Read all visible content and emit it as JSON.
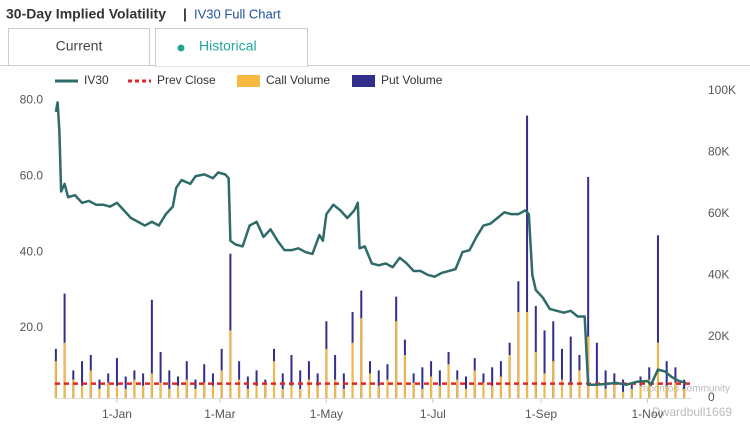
{
  "header": {
    "title": "30-Day Implied Volatility",
    "separator": "|",
    "link": "IV30 Full Chart"
  },
  "tabs": [
    "Current",
    "Historical"
  ],
  "watermark": [
    "moomoo community",
    "Dwardbull1669"
  ],
  "chart_data": {
    "type": "line",
    "xlim": [
      -35.5,
      329.5
    ],
    "xticks": [
      {
        "value": 0,
        "label": "1-Jan"
      },
      {
        "value": 59,
        "label": "1-Mar"
      },
      {
        "value": 120,
        "label": "1-May"
      },
      {
        "value": 181,
        "label": "1-Jul"
      },
      {
        "value": 243,
        "label": "1-Sep"
      },
      {
        "value": 304,
        "label": "1-Nov"
      }
    ],
    "ylim": [
      1.5,
      82.5
    ],
    "yticks": [
      {
        "value": 20,
        "label": "20.0"
      },
      {
        "value": 40,
        "label": "40.0"
      },
      {
        "value": 60,
        "label": "60.0"
      },
      {
        "value": 80,
        "label": "80.0"
      }
    ],
    "y2lim": [
      0,
      100000
    ],
    "y2ticks": [
      0,
      {
        "value": 20000,
        "label": "20K"
      },
      {
        "value": 40000,
        "label": "40K"
      },
      {
        "value": 60000,
        "label": "60K"
      },
      {
        "value": 80000,
        "label": "80K"
      },
      {
        "value": 100000,
        "label": "100K"
      }
    ],
    "series": [
      {
        "name": "IV30",
        "color": "#2f6b68",
        "x": [
          -35,
          -34,
          -33,
          -32,
          -30,
          -28,
          -24,
          -20,
          -16,
          -12,
          -8,
          -4,
          0,
          4,
          8,
          12,
          16,
          20,
          24,
          28,
          32,
          34,
          37,
          42,
          45,
          50,
          55,
          58,
          62,
          64,
          65,
          68,
          72,
          76,
          80,
          84,
          88,
          92,
          96,
          100,
          104,
          108,
          112,
          116,
          118,
          120,
          124,
          128,
          132,
          136,
          138,
          139,
          142,
          146,
          150,
          154,
          158,
          162,
          166,
          170,
          174,
          178,
          182,
          186,
          190,
          194,
          198,
          202,
          206,
          210,
          214,
          218,
          222,
          226,
          230,
          234,
          236,
          238,
          240,
          244,
          248,
          252,
          256,
          260,
          264,
          268,
          270,
          274,
          280,
          286,
          292,
          298,
          304,
          306,
          310,
          314,
          318,
          322,
          326
        ],
        "values": [
          77,
          79.5,
          72,
          56,
          58,
          54.5,
          55,
          53,
          53.5,
          52.5,
          52.5,
          52,
          53,
          51,
          49,
          48,
          47,
          48,
          47,
          50,
          52,
          57,
          59,
          58,
          60,
          60.5,
          59.5,
          61,
          60.5,
          59.5,
          43,
          42,
          41.5,
          47,
          48,
          44,
          46,
          43,
          40.5,
          40.5,
          41,
          40,
          39.5,
          44.5,
          43,
          50,
          52.5,
          51,
          49,
          51,
          53,
          41,
          41.5,
          37,
          36.5,
          37,
          36,
          38.5,
          37,
          35,
          35,
          34,
          33.5,
          34.5,
          35,
          35.5,
          40,
          40.5,
          44,
          47,
          47.5,
          49,
          50.5,
          50,
          50,
          51,
          50,
          34,
          30,
          28,
          25,
          24.5,
          24,
          24.5,
          23,
          23,
          5,
          5,
          5.2,
          5.5,
          5,
          5.8,
          6,
          5,
          9,
          8.5,
          7,
          6,
          5.5
        ]
      },
      {
        "name": "Prev Close",
        "color": "#e02828",
        "values": [
          5.3
        ]
      },
      {
        "name": "Put Volume",
        "color": "#312e8c",
        "axis": "y2",
        "x": [
          -35,
          -30,
          -25,
          -20,
          -15,
          -10,
          -5,
          0,
          5,
          10,
          15,
          20,
          25,
          30,
          35,
          40,
          45,
          50,
          55,
          60,
          65,
          70,
          75,
          80,
          85,
          90,
          95,
          100,
          105,
          110,
          115,
          120,
          125,
          130,
          135,
          140,
          145,
          150,
          155,
          160,
          165,
          170,
          175,
          180,
          185,
          190,
          195,
          200,
          205,
          210,
          215,
          220,
          225,
          230,
          235,
          240,
          245,
          250,
          255,
          260,
          265,
          270,
          275,
          280,
          285,
          290,
          295,
          300,
          305,
          310,
          315,
          320,
          325
        ],
        "values": [
          16000,
          34000,
          9000,
          12000,
          14000,
          6000,
          8000,
          13000,
          7000,
          9000,
          8000,
          32000,
          15000,
          9000,
          7000,
          12000,
          6000,
          11000,
          8000,
          16000,
          47000,
          12000,
          7000,
          9000,
          6000,
          16000,
          8000,
          14000,
          9000,
          12000,
          8000,
          25000,
          14000,
          8000,
          28000,
          35000,
          12000,
          9000,
          11000,
          33000,
          19000,
          8000,
          10000,
          12000,
          9000,
          15000,
          9000,
          7000,
          13000,
          8000,
          10000,
          12000,
          18000,
          38000,
          92000,
          30000,
          22000,
          25000,
          16000,
          20000,
          14000,
          72000,
          18000,
          9000,
          8000,
          6000,
          5000,
          7000,
          10000,
          53000,
          12000,
          10000,
          6000
        ]
      },
      {
        "name": "Call Volume",
        "color": "#f6b942",
        "axis": "y2",
        "x": [
          -35,
          -30,
          -25,
          -20,
          -15,
          -10,
          -5,
          0,
          5,
          10,
          15,
          20,
          25,
          30,
          35,
          40,
          45,
          50,
          55,
          60,
          65,
          70,
          75,
          80,
          85,
          90,
          95,
          100,
          105,
          110,
          115,
          120,
          125,
          130,
          135,
          140,
          145,
          150,
          155,
          160,
          165,
          170,
          175,
          180,
          185,
          190,
          195,
          200,
          205,
          210,
          215,
          220,
          225,
          230,
          235,
          240,
          245,
          250,
          255,
          260,
          265,
          270,
          275,
          280,
          285,
          290,
          295,
          300,
          305,
          310,
          315,
          320,
          325
        ],
        "values": [
          12000,
          18000,
          6000,
          4000,
          9000,
          3000,
          5000,
          4000,
          3000,
          6000,
          4000,
          8000,
          5000,
          3000,
          4000,
          6000,
          3000,
          5000,
          4000,
          9000,
          22000,
          6000,
          3000,
          4000,
          5000,
          12000,
          3000,
          4000,
          3000,
          6000,
          4000,
          16000,
          6000,
          3000,
          18000,
          26000,
          8000,
          4000,
          6000,
          25000,
          14000,
          5000,
          3000,
          7000,
          4000,
          11000,
          6000,
          3000,
          9000,
          5000,
          4000,
          7000,
          14000,
          28000,
          28000,
          15000,
          8000,
          12000,
          6000,
          5000,
          9000,
          20000,
          4000,
          3000,
          5000,
          2000,
          3000,
          4000,
          6000,
          18000,
          4000,
          5000,
          3000
        ]
      }
    ]
  }
}
